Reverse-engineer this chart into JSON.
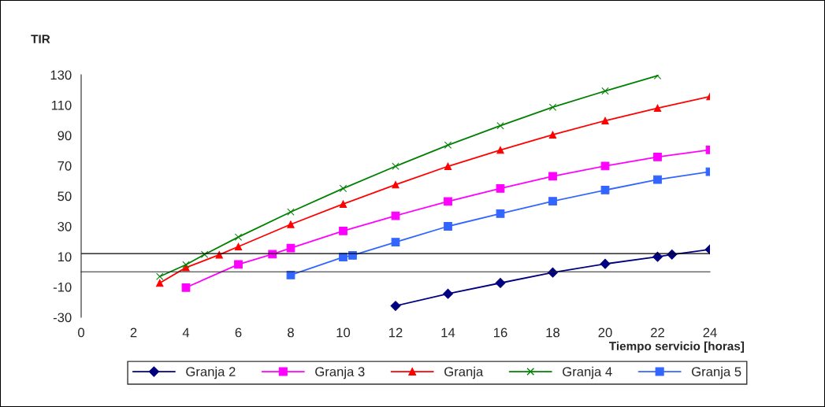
{
  "chart_data": {
    "type": "line",
    "ylabel": "TIR",
    "xlabel": "Tiempo servicio [horas]",
    "xlim": [
      0,
      24
    ],
    "xticks": [
      0,
      2,
      4,
      6,
      8,
      10,
      12,
      14,
      16,
      18,
      20,
      22,
      24
    ],
    "ylim": [
      -30,
      130
    ],
    "yticks": [
      -30,
      -10,
      10,
      30,
      50,
      70,
      90,
      110,
      130
    ],
    "grid": false,
    "legend": "bottom",
    "line_style": "solid",
    "ref_lines": [
      {
        "axis": "y",
        "value": 12,
        "color": "#000000"
      }
    ],
    "series": [
      {
        "name": "Granja 2",
        "color": "#000080",
        "marker": "diamond",
        "x": [
          12,
          14,
          16,
          18,
          20,
          22,
          22.55,
          24
        ],
        "values": [
          -22.5,
          -14.5,
          -7.4,
          -0.5,
          5.2,
          9.9,
          11.4,
          14.7
        ]
      },
      {
        "name": "Granja 3",
        "color": "#ff00ff",
        "marker": "square",
        "x": [
          4,
          6,
          7.3,
          8,
          10,
          12,
          14,
          16,
          18,
          20,
          22,
          24
        ],
        "values": [
          -10.4,
          4.9,
          11.6,
          15.6,
          27,
          37,
          46.4,
          55,
          63,
          69.8,
          75.8,
          80.5
        ]
      },
      {
        "name": "Granja",
        "color": "#ff0000",
        "marker": "triangle",
        "x": [
          3,
          4,
          5.27,
          6,
          8,
          10,
          12,
          14,
          16,
          18,
          20,
          22,
          24
        ],
        "values": [
          -7.4,
          2.8,
          11.2,
          16.6,
          31.3,
          44.7,
          57.5,
          69.6,
          80.3,
          90.4,
          99.7,
          108,
          115.7
        ]
      },
      {
        "name": "Granja 4",
        "color": "#008000",
        "marker": "cross",
        "x": [
          3,
          4,
          4.71,
          6,
          8,
          10,
          12,
          14,
          16,
          18,
          20,
          22
        ],
        "values": [
          -3.1,
          4.7,
          11.4,
          22.9,
          39.5,
          55,
          69.6,
          83.6,
          96.4,
          108.6,
          119.3,
          129.4
        ]
      },
      {
        "name": "Granja 5",
        "color": "#3366ff",
        "marker": "square",
        "x": [
          8,
          10,
          10.36,
          12,
          14,
          16,
          18,
          20,
          22,
          24
        ],
        "values": [
          -2.1,
          9.7,
          10.8,
          19.6,
          30,
          38.4,
          46.6,
          53.9,
          60.8,
          66
        ]
      }
    ]
  }
}
